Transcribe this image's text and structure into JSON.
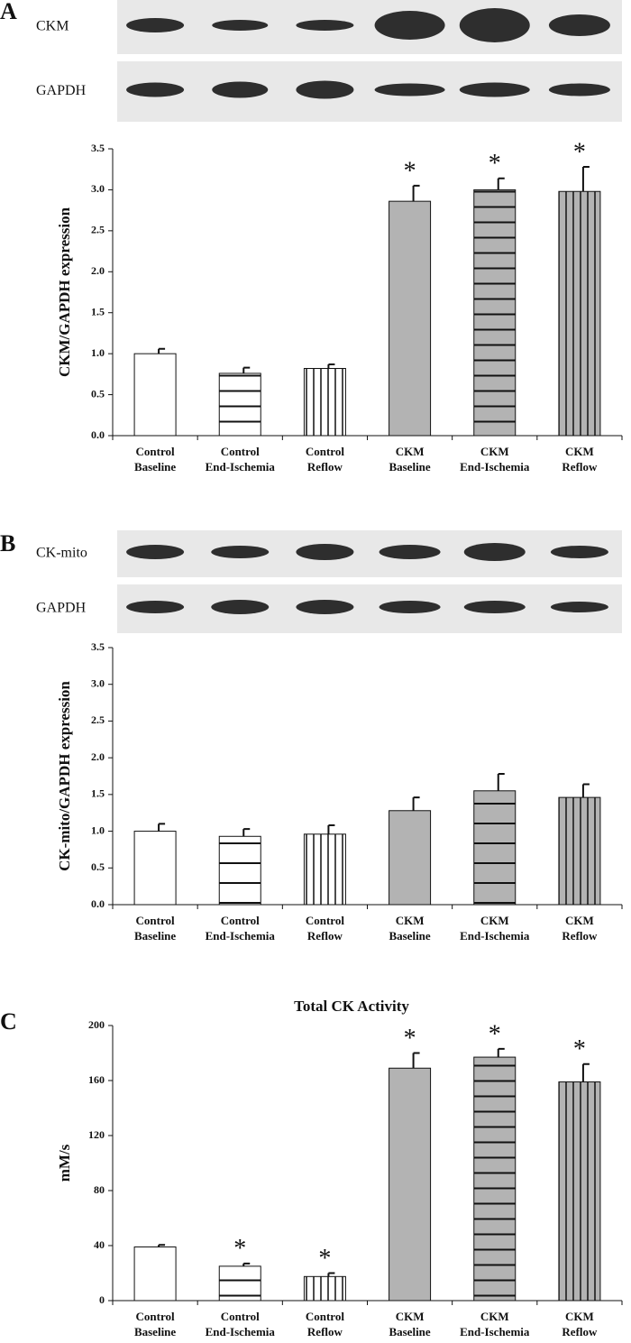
{
  "chart_data": [
    {
      "type": "bar",
      "panel": "A",
      "blots": [
        "CKM",
        "GAPDH"
      ],
      "y_label": "CKM/GAPDH expression",
      "categories": [
        "Control Baseline",
        "Control End-Ischemia",
        "Control Reflow",
        "CKM Baseline",
        "CKM End-Ischemia",
        "CKM Reflow"
      ],
      "values": [
        1.0,
        0.76,
        0.82,
        2.86,
        3.0,
        2.98
      ],
      "errors": [
        0.06,
        0.07,
        0.05,
        0.19,
        0.14,
        0.3
      ],
      "markers": [
        null,
        null,
        null,
        "*",
        "*",
        "*"
      ],
      "colors": [
        "#ffffff",
        "#ffffff",
        "#ffffff",
        "#b3b3b3",
        "#b3b3b3",
        "#b3b3b3"
      ],
      "patterns": [
        "none",
        "horizontal",
        "vertical",
        "none",
        "horizontal",
        "vertical"
      ],
      "ylim": [
        0,
        3.5
      ],
      "yticks": [
        {
          "value": 0,
          "label": "0.0"
        },
        0.5,
        {
          "value": 1,
          "label": "1.0"
        },
        1.5,
        {
          "value": 2,
          "label": "2.0"
        },
        2.5,
        {
          "value": 3,
          "label": "3.0"
        },
        3.5
      ]
    },
    {
      "type": "bar",
      "panel": "B",
      "blots": [
        "CK-mito",
        "GAPDH"
      ],
      "y_label": "CK-mito/GAPDH expression",
      "categories": [
        "Control Baseline",
        "Control End-Ischemia",
        "Control Reflow",
        "CKM Baseline",
        "CKM End-Ischemia",
        "CKM Reflow"
      ],
      "values": [
        1.0,
        0.93,
        0.96,
        1.28,
        1.55,
        1.46
      ],
      "errors": [
        0.1,
        0.1,
        0.12,
        0.18,
        0.23,
        0.18
      ],
      "colors": [
        "#ffffff",
        "#ffffff",
        "#ffffff",
        "#b3b3b3",
        "#b3b3b3",
        "#b3b3b3"
      ],
      "patterns": [
        "none",
        "horizontal",
        "vertical",
        "none",
        "horizontal",
        "vertical"
      ],
      "ylim": [
        0,
        3.5
      ],
      "yticks": [
        {
          "value": 0,
          "label": "0.0"
        },
        0.5,
        {
          "value": 1,
          "label": "1.0"
        },
        1.5,
        {
          "value": 2,
          "label": "2.0"
        },
        2.5,
        {
          "value": 3,
          "label": "3.0"
        },
        3.5
      ]
    },
    {
      "type": "bar",
      "panel": "C",
      "title": "Total CK Activity",
      "y_label": "mM/s",
      "categories": [
        "Control Baseline",
        "Control End-Ischemia",
        "Control Reflow",
        "CKM Baseline",
        "CKM End-Ischemia",
        "CKM Reflow"
      ],
      "values": [
        39,
        25,
        17.5,
        169,
        177,
        159
      ],
      "errors": [
        1.5,
        2,
        2.5,
        11,
        6,
        13
      ],
      "markers": [
        null,
        "*",
        "*",
        "*",
        "*",
        "*"
      ],
      "colors": [
        "#ffffff",
        "#ffffff",
        "#ffffff",
        "#b3b3b3",
        "#b3b3b3",
        "#b3b3b3"
      ],
      "patterns": [
        "none",
        "horizontal",
        "vertical",
        "none",
        "horizontal",
        "vertical"
      ],
      "ylim": [
        0,
        200
      ],
      "yticks": [
        0,
        40,
        80,
        120,
        160,
        200
      ]
    }
  ]
}
